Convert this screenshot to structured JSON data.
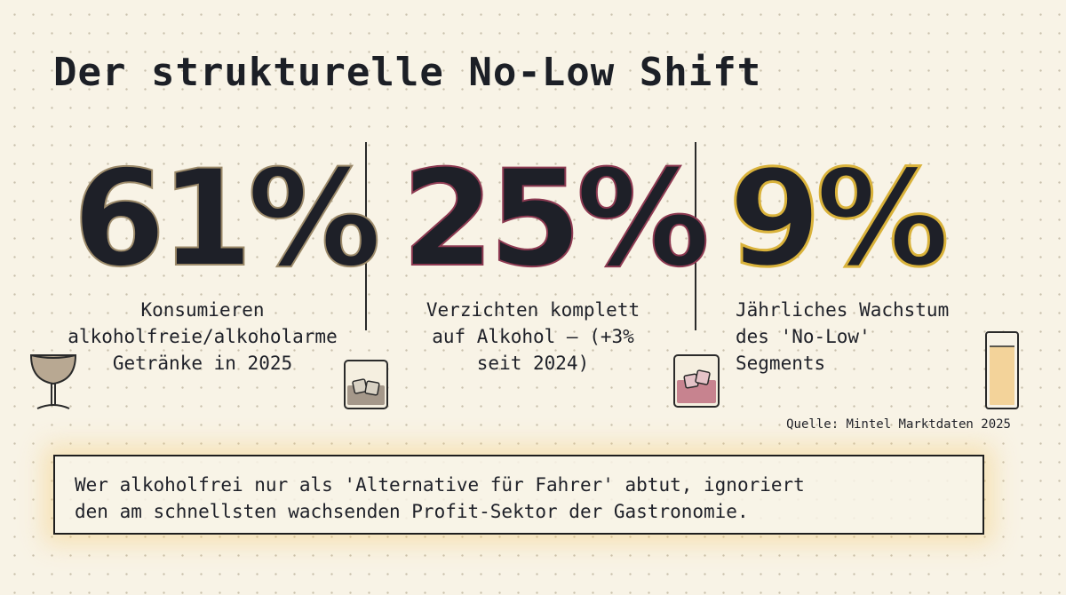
{
  "title": "Der strukturelle No-Low Shift",
  "stats": [
    {
      "value": "61%",
      "desc_lines": [
        "Konsumieren",
        "alkoholfreie/alkoholarme",
        "Getränke in 2025"
      ],
      "accent": "#9c8a6a",
      "icon": "coupe-glass-icon"
    },
    {
      "value": "25%",
      "desc_lines": [
        "Verzichten komplett",
        "auf Alkohol – (+3%",
        "seit 2024)"
      ],
      "accent": "#8e3a52",
      "icon": "rocks-glass-icon"
    },
    {
      "value": "9%",
      "desc_lines": [
        "Jährliches Wachstum",
        "des 'No-Low'",
        "Segments"
      ],
      "accent": "#d9b23a",
      "icon": "highball-glass-icon"
    }
  ],
  "source": "Quelle: Mintel Marktdaten 2025",
  "quote_lines": [
    "Wer alkoholfrei nur als 'Alternative für Fahrer' abtut, ignoriert",
    "den am schnellsten wachsenden Profit-Sektor der Gastronomie."
  ]
}
